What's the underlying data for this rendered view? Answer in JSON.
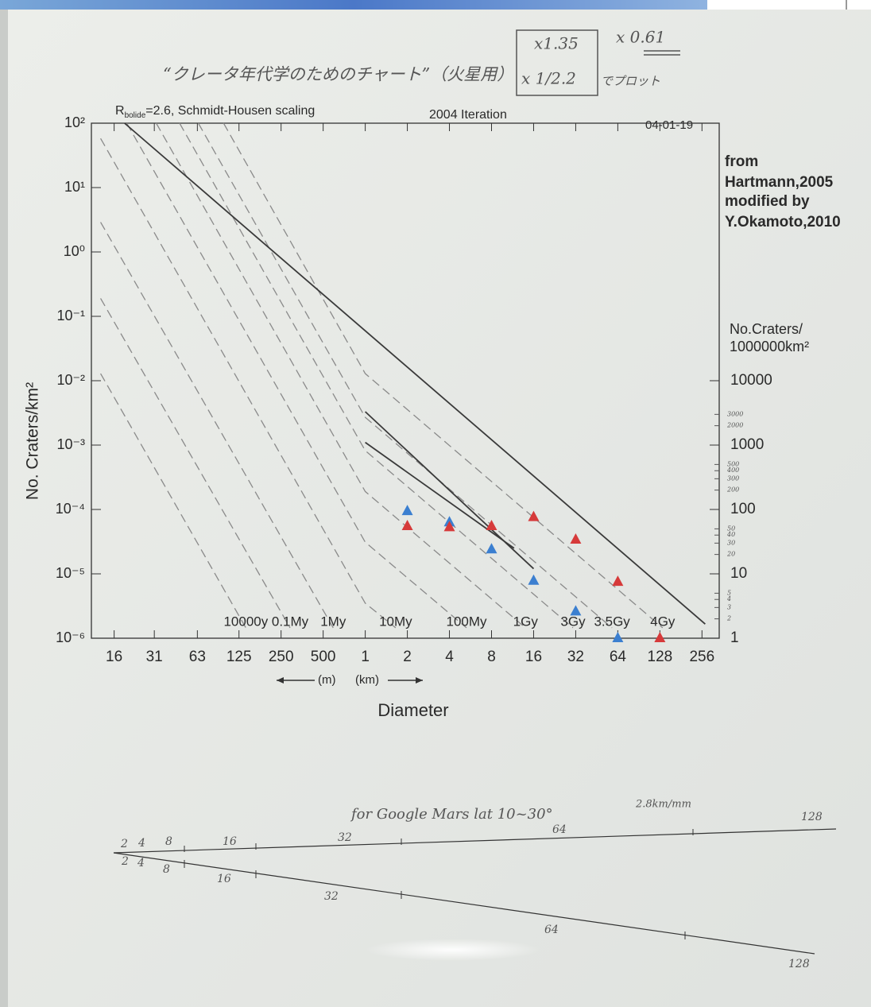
{
  "chart_data": {
    "type": "line",
    "title": "2004 Iteration",
    "subtitle_parts": [
      "R",
      "bolide",
      "=2.6, Schmidt-Housen scaling"
    ],
    "date": "04-01-19",
    "source": [
      "from",
      "Hartmann,2005",
      "modified by",
      "Y.Okamoto,2010"
    ],
    "xlabel": "Diameter",
    "x_unit_left": "(m)",
    "x_unit_right": "(km)",
    "ylabel": "No. Craters/km²",
    "y2label": [
      "No.Craters/",
      "1000000km²"
    ],
    "xscale": "log",
    "yscale": "log",
    "xlim": [
      0.011,
      340
    ],
    "ylim": [
      1e-06,
      100
    ],
    "y2lim": [
      1,
      100000000
    ],
    "xticks": [
      {
        "value": 0.016,
        "label": "16"
      },
      {
        "value": 0.031,
        "label": "31"
      },
      {
        "value": 0.063,
        "label": "63"
      },
      {
        "value": 0.125,
        "label": "125"
      },
      {
        "value": 0.25,
        "label": "250"
      },
      {
        "value": 0.5,
        "label": "500"
      },
      1,
      2,
      4,
      8,
      16,
      32,
      64,
      128,
      256
    ],
    "yticks": [
      {
        "value": 100,
        "label": "10²"
      },
      {
        "value": 10,
        "label": "10¹"
      },
      {
        "value": 1,
        "label": "10⁰"
      },
      {
        "value": 0.1,
        "label": "10⁻¹"
      },
      {
        "value": 0.01,
        "label": "10⁻²"
      },
      {
        "value": 0.001,
        "label": "10⁻³"
      },
      {
        "value": 0.0001,
        "label": "10⁻⁴"
      },
      {
        "value": 1e-05,
        "label": "10⁻⁵"
      },
      {
        "value": 1e-06,
        "label": "10⁻⁶"
      }
    ],
    "y2ticks": [
      10000,
      1000,
      100,
      10,
      1
    ],
    "y2minorticks": [
      3000,
      2000,
      500,
      400,
      300,
      200,
      50,
      40,
      30,
      20,
      5,
      4,
      3,
      2
    ],
    "series": [
      {
        "name": "4Gy",
        "color": "#8a8a8a",
        "dashed": true,
        "x": [
          0.097,
          1,
          134
        ],
        "values": [
          100,
          0.0129,
          1.45e-06
        ]
      },
      {
        "name": "3.5Gy",
        "color": "#8a8a8a",
        "dashed": true,
        "x": [
          0.064,
          1,
          58.2
        ],
        "values": [
          100,
          0.0027,
          1.45e-06
        ]
      },
      {
        "name": "3Gy",
        "color": "#8a8a8a",
        "dashed": true,
        "x": [
          0.047,
          1,
          30.6
        ],
        "values": [
          100,
          0.00082,
          1.45e-06
        ]
      },
      {
        "name": "1Gy",
        "color": "#8a8a8a",
        "dashed": true,
        "x": [
          0.032,
          1,
          14
        ],
        "values": [
          100,
          0.00019,
          1.45e-06
        ]
      },
      {
        "name": "100My",
        "color": "#8a8a8a",
        "dashed": true,
        "x": [
          0.0197,
          1,
          5.3
        ],
        "values": [
          100,
          3.1e-05,
          1.45e-06
        ]
      },
      {
        "name": "10My",
        "color": "#8a8a8a",
        "dashed": true,
        "x": [
          0.0128,
          1,
          1.65
        ],
        "values": [
          58,
          3.5e-06,
          1.45e-06
        ]
      },
      {
        "name": "1My",
        "color": "#8a8a8a",
        "dashed": true,
        "x": [
          0.0128,
          0.59
        ],
        "values": [
          2.9,
          1.45e-06
        ]
      },
      {
        "name": "0.1My",
        "color": "#8a8a8a",
        "dashed": true,
        "x": [
          0.0128,
          0.29
        ],
        "values": [
          0.19,
          1.45e-06
        ]
      },
      {
        "name": "10000y",
        "color": "#8a8a8a",
        "dashed": true,
        "x": [
          0.0128,
          0.14
        ],
        "values": [
          0.0129,
          1.45e-06
        ]
      },
      {
        "color": "#3a3a3a",
        "dashed": false,
        "x": [
          0.019,
          270
        ],
        "values": [
          100,
          1.66e-06
        ]
      },
      {
        "color": "#3a3a3a",
        "dashed": false,
        "x": [
          1,
          16
        ],
        "values": [
          0.0033,
          1.2e-05
        ]
      },
      {
        "color": "#3a3a3a",
        "dashed": false,
        "x": [
          1,
          11.6
        ],
        "values": [
          0.0011,
          2.5e-05
        ]
      },
      {
        "color": "#3b7fd0",
        "marker": "triangle",
        "x": [
          2,
          4,
          8,
          16,
          32,
          64
        ],
        "values": [
          9.4e-05,
          6.3e-05,
          2.4e-05,
          7.8e-06,
          2.6e-06,
          1e-06
        ]
      },
      {
        "color": "#d63a3a",
        "marker": "triangle",
        "x": [
          2,
          4,
          8,
          16,
          32,
          64,
          128
        ],
        "values": [
          5.5e-05,
          5.3e-05,
          5.5e-05,
          7.6e-05,
          3.4e-05,
          7.5e-06,
          1e-06
        ]
      }
    ],
    "annotations": [
      "“クレータ年代学のためのチャート”（火星用）",
      "x1.35",
      "x 1/2.2",
      "でプロット",
      "x 0.61"
    ]
  },
  "scale_sheet": {
    "note": "for Google Mars  lat 10~30°",
    "resolution": "2.8km/mm",
    "upper_labels": [
      "2",
      "4",
      "8",
      "16",
      "32",
      "64",
      "128"
    ],
    "lower_labels": [
      "2",
      "4",
      "8",
      "16",
      "32",
      "64",
      "128"
    ]
  }
}
